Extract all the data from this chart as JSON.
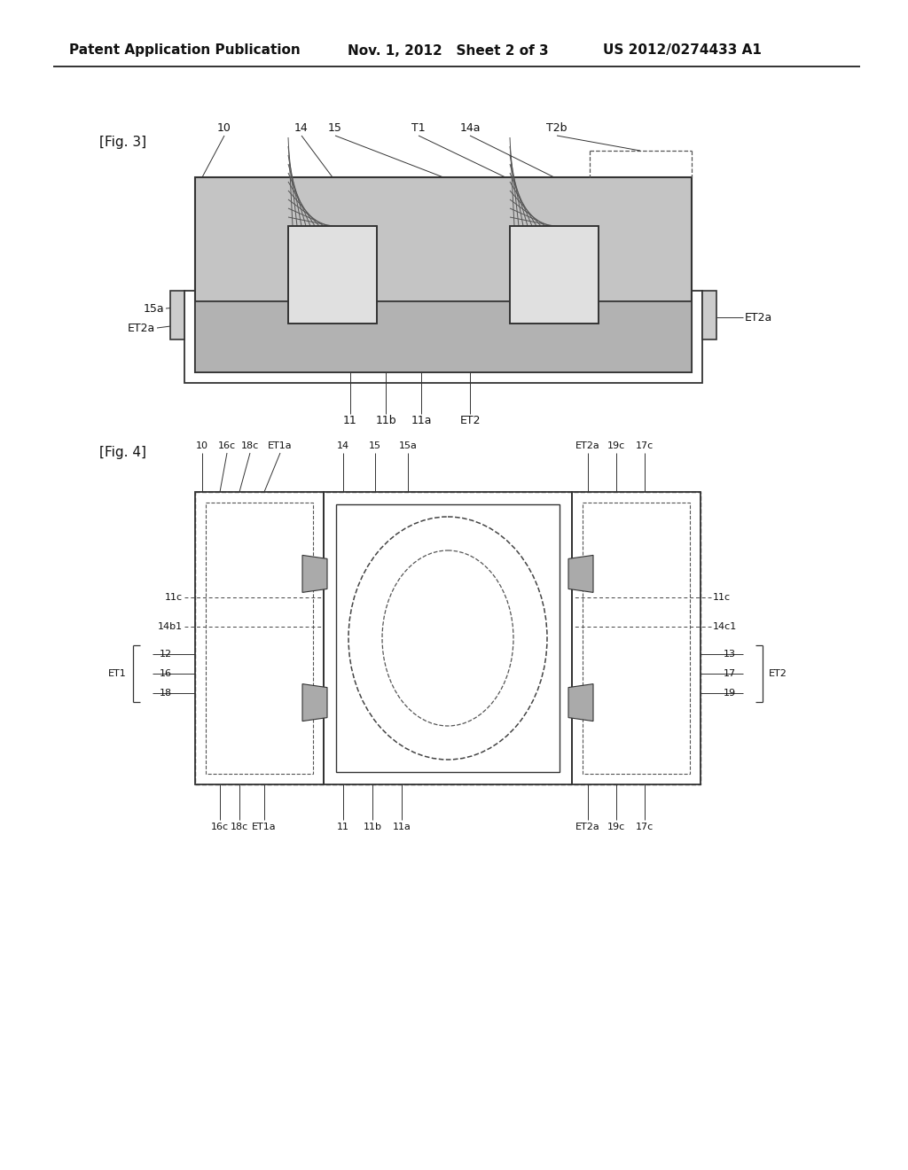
{
  "header_left": "Patent Application Publication",
  "header_mid": "Nov. 1, 2012   Sheet 2 of 3",
  "header_right": "US 2012/0274433 A1",
  "fig3_label": "[Fig. 3]",
  "fig4_label": "[Fig. 4]",
  "bg_color": "#ffffff",
  "lc": "#444444",
  "lc_dark": "#222222",
  "gray_body": "#c0c0c0",
  "gray_plat": "#aaaaaa",
  "gray_coil": "#d8d8d8",
  "gray_mid": "#b8b8b8"
}
